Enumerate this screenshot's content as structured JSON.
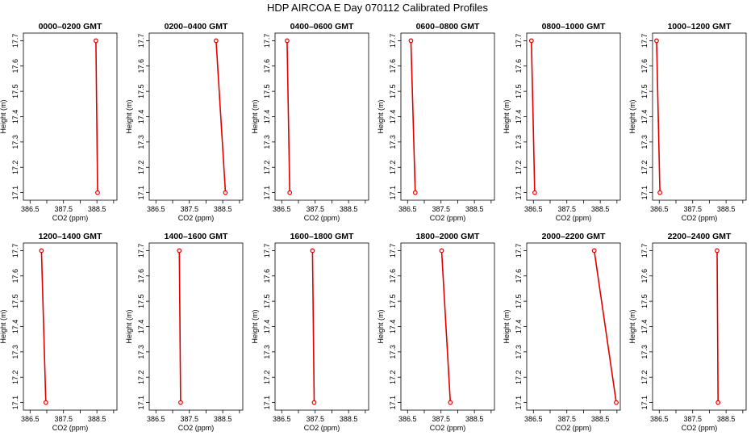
{
  "title": "HDP  AIRCOA E  Day 070112  Calibrated Profiles",
  "colors": {
    "profile": "#e00000",
    "axes": "#000000"
  },
  "chart_data": [
    {
      "type": "line",
      "title": "0000–0200 GMT",
      "xlabel": "CO2 (ppm)",
      "ylabel": "Height (m)",
      "xlim": [
        386.3,
        389.1
      ],
      "ylim": [
        17.07,
        17.73
      ],
      "xticks": [
        "386.5",
        "387.5",
        "388.5"
      ],
      "xticks_unlabeled": [
        387,
        388,
        389
      ],
      "yticks": [
        "17.1",
        "17.2",
        "17.3",
        "17.4",
        "17.5",
        "17.6",
        "17.7"
      ],
      "series": [
        {
          "x": [
            388.47,
            388.52
          ],
          "y": [
            17.7,
            17.1
          ]
        }
      ]
    },
    {
      "type": "line",
      "title": "0200–0400 GMT",
      "xlabel": "CO2 (ppm)",
      "ylabel": "Height (m)",
      "xlim": [
        386.3,
        389.1
      ],
      "ylim": [
        17.07,
        17.73
      ],
      "xticks": [
        "386.5",
        "387.5",
        "388.5"
      ],
      "xticks_unlabeled": [
        387,
        388,
        389
      ],
      "yticks": [
        "17.1",
        "17.2",
        "17.3",
        "17.4",
        "17.5",
        "17.6",
        "17.7"
      ],
      "series": [
        {
          "x": [
            388.3,
            388.58
          ],
          "y": [
            17.7,
            17.1
          ]
        }
      ]
    },
    {
      "type": "line",
      "title": "0400–0600 GMT",
      "xlabel": "CO2 (ppm)",
      "ylabel": "Height (m)",
      "xlim": [
        386.3,
        389.1
      ],
      "ylim": [
        17.07,
        17.73
      ],
      "xticks": [
        "386.5",
        "387.5",
        "388.5"
      ],
      "xticks_unlabeled": [
        387,
        388,
        389
      ],
      "yticks": [
        "17.1",
        "17.2",
        "17.3",
        "17.4",
        "17.5",
        "17.6",
        "17.7"
      ],
      "series": [
        {
          "x": [
            386.66,
            386.74
          ],
          "y": [
            17.7,
            17.1
          ]
        }
      ]
    },
    {
      "type": "line",
      "title": "0600–0800 GMT",
      "xlabel": "CO2 (ppm)",
      "ylabel": "Height (m)",
      "xlim": [
        386.3,
        389.1
      ],
      "ylim": [
        17.07,
        17.73
      ],
      "xticks": [
        "386.5",
        "387.5",
        "388.5"
      ],
      "xticks_unlabeled": [
        387,
        388,
        389
      ],
      "yticks": [
        "17.1",
        "17.2",
        "17.3",
        "17.4",
        "17.5",
        "17.6",
        "17.7"
      ],
      "series": [
        {
          "x": [
            386.6,
            386.73
          ],
          "y": [
            17.7,
            17.1
          ]
        }
      ]
    },
    {
      "type": "line",
      "title": "0800–1000 GMT",
      "xlabel": "CO2 (ppm)",
      "ylabel": "Height (m)",
      "xlim": [
        386.3,
        389.1
      ],
      "ylim": [
        17.07,
        17.73
      ],
      "xticks": [
        "386.5",
        "387.5",
        "388.5"
      ],
      "xticks_unlabeled": [
        387,
        388,
        389
      ],
      "yticks": [
        "17.1",
        "17.2",
        "17.3",
        "17.4",
        "17.5",
        "17.6",
        "17.7"
      ],
      "series": [
        {
          "x": [
            386.44,
            386.54
          ],
          "y": [
            17.7,
            17.1
          ]
        }
      ]
    },
    {
      "type": "line",
      "title": "1000–1200 GMT",
      "xlabel": "CO2 (ppm)",
      "ylabel": "Height (m)",
      "xlim": [
        386.3,
        389.1
      ],
      "ylim": [
        17.07,
        17.73
      ],
      "xticks": [
        "386.5",
        "387.5",
        "388.5"
      ],
      "xticks_unlabeled": [
        387,
        388,
        389
      ],
      "yticks": [
        "17.1",
        "17.2",
        "17.3",
        "17.4",
        "17.5",
        "17.6",
        "17.7"
      ],
      "series": [
        {
          "x": [
            386.42,
            386.52
          ],
          "y": [
            17.7,
            17.1
          ]
        }
      ]
    },
    {
      "type": "line",
      "title": "1200–1400 GMT",
      "xlabel": "CO2 (ppm)",
      "ylabel": "Height (m)",
      "xlim": [
        386.3,
        389.1
      ],
      "ylim": [
        17.07,
        17.73
      ],
      "xticks": [
        "386.5",
        "387.5",
        "388.5"
      ],
      "xticks_unlabeled": [
        387,
        388,
        389
      ],
      "yticks": [
        "17.1",
        "17.2",
        "17.3",
        "17.4",
        "17.5",
        "17.6",
        "17.7"
      ],
      "series": [
        {
          "x": [
            386.84,
            386.97
          ],
          "y": [
            17.7,
            17.1
          ]
        }
      ]
    },
    {
      "type": "line",
      "title": "1400–1600 GMT",
      "xlabel": "CO2 (ppm)",
      "ylabel": "Height (m)",
      "xlim": [
        386.3,
        389.1
      ],
      "ylim": [
        17.07,
        17.73
      ],
      "xticks": [
        "386.5",
        "387.5",
        "388.5"
      ],
      "xticks_unlabeled": [
        387,
        388,
        389
      ],
      "yticks": [
        "17.1",
        "17.2",
        "17.3",
        "17.4",
        "17.5",
        "17.6",
        "17.7"
      ],
      "series": [
        {
          "x": [
            387.2,
            387.24
          ],
          "y": [
            17.7,
            17.1
          ]
        }
      ]
    },
    {
      "type": "line",
      "title": "1600–1800 GMT",
      "xlabel": "CO2 (ppm)",
      "ylabel": "Height (m)",
      "xlim": [
        386.3,
        389.1
      ],
      "ylim": [
        17.07,
        17.73
      ],
      "xticks": [
        "386.5",
        "387.5",
        "388.5"
      ],
      "xticks_unlabeled": [
        387,
        388,
        389
      ],
      "yticks": [
        "17.1",
        "17.2",
        "17.3",
        "17.4",
        "17.5",
        "17.6",
        "17.7"
      ],
      "series": [
        {
          "x": [
            387.42,
            387.47
          ],
          "y": [
            17.7,
            17.1
          ]
        }
      ]
    },
    {
      "type": "line",
      "title": "1800–2000 GMT",
      "xlabel": "CO2 (ppm)",
      "ylabel": "Height (m)",
      "xlim": [
        386.3,
        389.1
      ],
      "ylim": [
        17.07,
        17.73
      ],
      "xticks": [
        "386.5",
        "387.5",
        "388.5"
      ],
      "xticks_unlabeled": [
        387,
        388,
        389
      ],
      "yticks": [
        "17.1",
        "17.2",
        "17.3",
        "17.4",
        "17.5",
        "17.6",
        "17.7"
      ],
      "series": [
        {
          "x": [
            387.52,
            387.78
          ],
          "y": [
            17.7,
            17.1
          ]
        }
      ]
    },
    {
      "type": "line",
      "title": "2000–2200 GMT",
      "xlabel": "CO2 (ppm)",
      "ylabel": "Height (m)",
      "xlim": [
        386.3,
        389.1
      ],
      "ylim": [
        17.07,
        17.73
      ],
      "xticks": [
        "386.5",
        "387.5",
        "388.5"
      ],
      "xticks_unlabeled": [
        387,
        388,
        389
      ],
      "yticks": [
        "17.1",
        "17.2",
        "17.3",
        "17.4",
        "17.5",
        "17.6",
        "17.7"
      ],
      "series": [
        {
          "x": [
            388.32,
            388.98
          ],
          "y": [
            17.7,
            17.1
          ]
        }
      ]
    },
    {
      "type": "line",
      "title": "2200–2400 GMT",
      "xlabel": "CO2 (ppm)",
      "ylabel": "Height (m)",
      "xlim": [
        386.3,
        389.1
      ],
      "ylim": [
        17.07,
        17.73
      ],
      "xticks": [
        "386.5",
        "387.5",
        "388.5"
      ],
      "xticks_unlabeled": [
        387,
        388,
        389
      ],
      "yticks": [
        "17.1",
        "17.2",
        "17.3",
        "17.4",
        "17.5",
        "17.6",
        "17.7"
      ],
      "series": [
        {
          "x": [
            388.23,
            388.26
          ],
          "y": [
            17.7,
            17.1
          ]
        }
      ]
    }
  ]
}
